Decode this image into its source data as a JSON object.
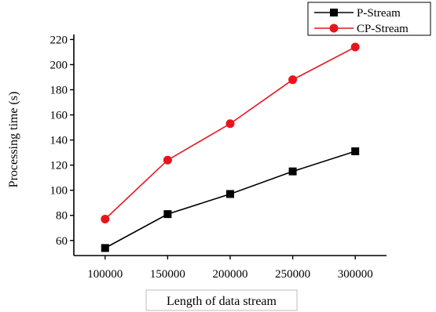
{
  "chart_data": {
    "type": "line",
    "title": "",
    "xlabel": "Length of data stream",
    "ylabel": "Processing time (s)",
    "x": [
      100000,
      150000,
      200000,
      250000,
      300000
    ],
    "xlim": [
      75000,
      325000
    ],
    "ylim": [
      48,
      224
    ],
    "yticks": [
      60,
      80,
      100,
      120,
      140,
      160,
      180,
      200,
      220
    ],
    "grid": false,
    "legend_position": "top-right",
    "series": [
      {
        "name": "P-Stream",
        "values": [
          54,
          81,
          97,
          115,
          131
        ],
        "color": "#000000",
        "marker": "square"
      },
      {
        "name": "CP-Stream",
        "values": [
          77,
          124,
          153,
          188,
          214
        ],
        "color": "#e8141c",
        "marker": "circle"
      }
    ]
  }
}
